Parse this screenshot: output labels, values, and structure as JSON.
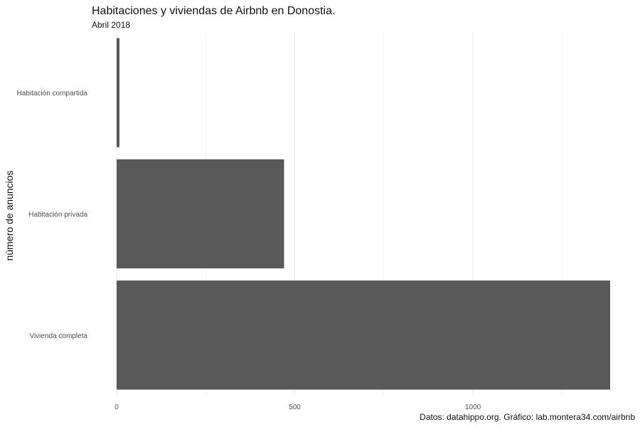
{
  "chart_data": {
    "type": "bar",
    "orientation": "horizontal",
    "title": "Habitaciones y viviendas de Airbnb en Donostia.",
    "subtitle": "Abril  2018",
    "xlabel": "",
    "ylabel": "número de anuncios",
    "caption": "Datos: datahippo.org. Gráfico: lab.montera34.com/airbnb",
    "categories": [
      "Habitación compartida",
      "Habitación privada",
      "Vivienda completa"
    ],
    "values": [
      8,
      470,
      1385
    ],
    "xlim": [
      0,
      1385
    ],
    "ticks": [
      0,
      500,
      1000
    ],
    "tick_labels": [
      "0",
      "500",
      "1000"
    ],
    "minor_ticks": [
      250,
      750,
      1250
    ],
    "bar_color": "#595959",
    "grid": true,
    "grid_color": "#ebebeb",
    "legend": "none"
  }
}
